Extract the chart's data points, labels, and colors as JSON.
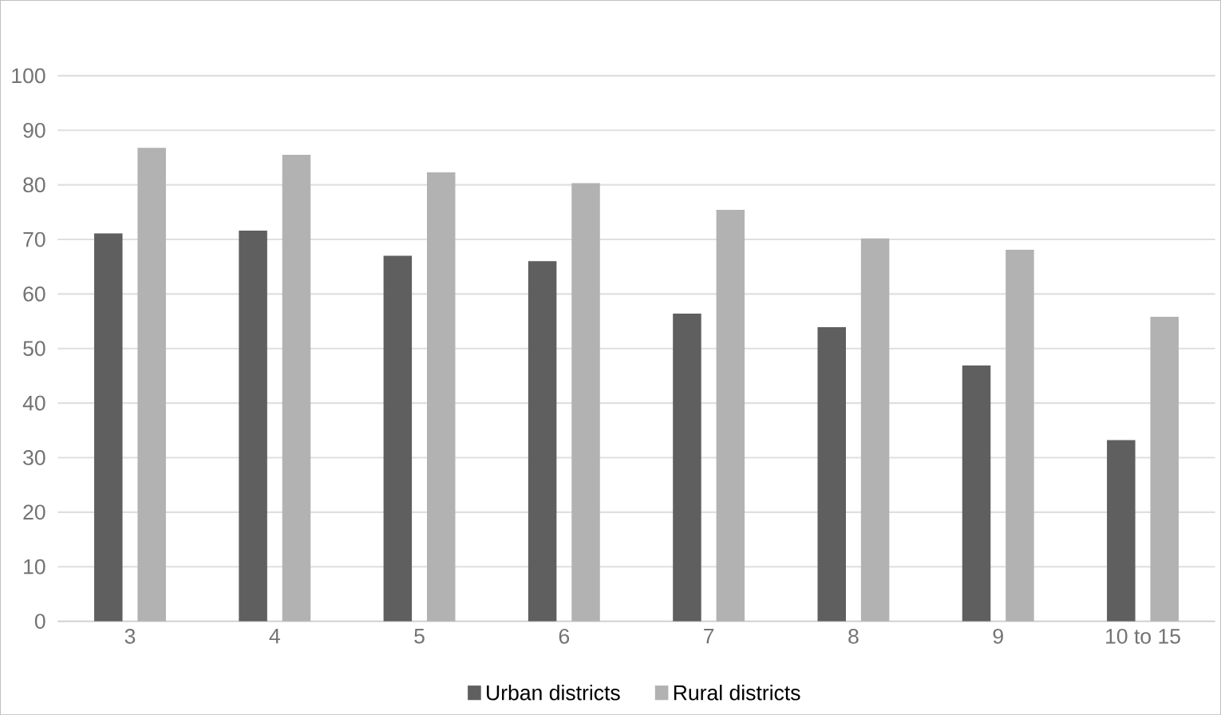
{
  "chart_data": {
    "type": "bar",
    "categories": [
      "3",
      "4",
      "5",
      "6",
      "7",
      "8",
      "9",
      "10 to 15"
    ],
    "series": [
      {
        "name": "Urban districts",
        "color": "#5f5f5f",
        "values": [
          71.1,
          71.6,
          67,
          66,
          56.4,
          53.9,
          46.9,
          33.2
        ]
      },
      {
        "name": "Rural districts",
        "color": "#b2b2b2",
        "values": [
          86.8,
          85.5,
          82.3,
          80.3,
          75.4,
          70.2,
          68.1,
          55.8
        ]
      }
    ],
    "ylim": [
      0,
      100
    ],
    "yticks": [
      0,
      10,
      20,
      30,
      40,
      50,
      60,
      70,
      80,
      90,
      100
    ],
    "grid": "y",
    "legend": "bottom"
  }
}
